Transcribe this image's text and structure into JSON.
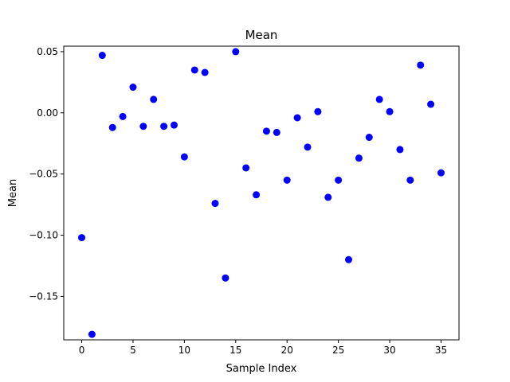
{
  "chart_data": {
    "type": "scatter",
    "title": "Mean",
    "xlabel": "Sample Index",
    "ylabel": "Mean",
    "xlim": [
      -1.75,
      36.75
    ],
    "ylim": [
      -0.1855,
      0.0545
    ],
    "xticks": [
      0,
      5,
      10,
      15,
      20,
      25,
      30,
      35
    ],
    "xtick_labels": [
      "0",
      "5",
      "10",
      "15",
      "20",
      "25",
      "30",
      "35"
    ],
    "yticks": [
      0.05,
      0.0,
      -0.05,
      -0.1,
      -0.15
    ],
    "ytick_labels": [
      "0.05",
      "0.00",
      "−0.05",
      "−0.10",
      "−0.15"
    ],
    "grid": false,
    "marker_color": "#0000ff",
    "x": [
      0,
      1,
      2,
      3,
      4,
      5,
      6,
      7,
      8,
      9,
      10,
      11,
      12,
      13,
      14,
      15,
      16,
      17,
      18,
      19,
      20,
      21,
      22,
      23,
      24,
      25,
      26,
      27,
      28,
      29,
      30,
      31,
      32,
      33,
      34,
      35
    ],
    "y": [
      -0.102,
      -0.181,
      0.047,
      -0.012,
      -0.003,
      0.021,
      -0.011,
      0.011,
      -0.011,
      -0.01,
      -0.036,
      0.035,
      0.033,
      -0.074,
      -0.135,
      0.05,
      -0.045,
      -0.067,
      -0.015,
      -0.016,
      -0.055,
      -0.004,
      -0.028,
      0.001,
      -0.069,
      -0.055,
      -0.12,
      -0.037,
      -0.02,
      0.011,
      0.001,
      -0.03,
      -0.055,
      0.039,
      0.007,
      -0.049
    ]
  }
}
